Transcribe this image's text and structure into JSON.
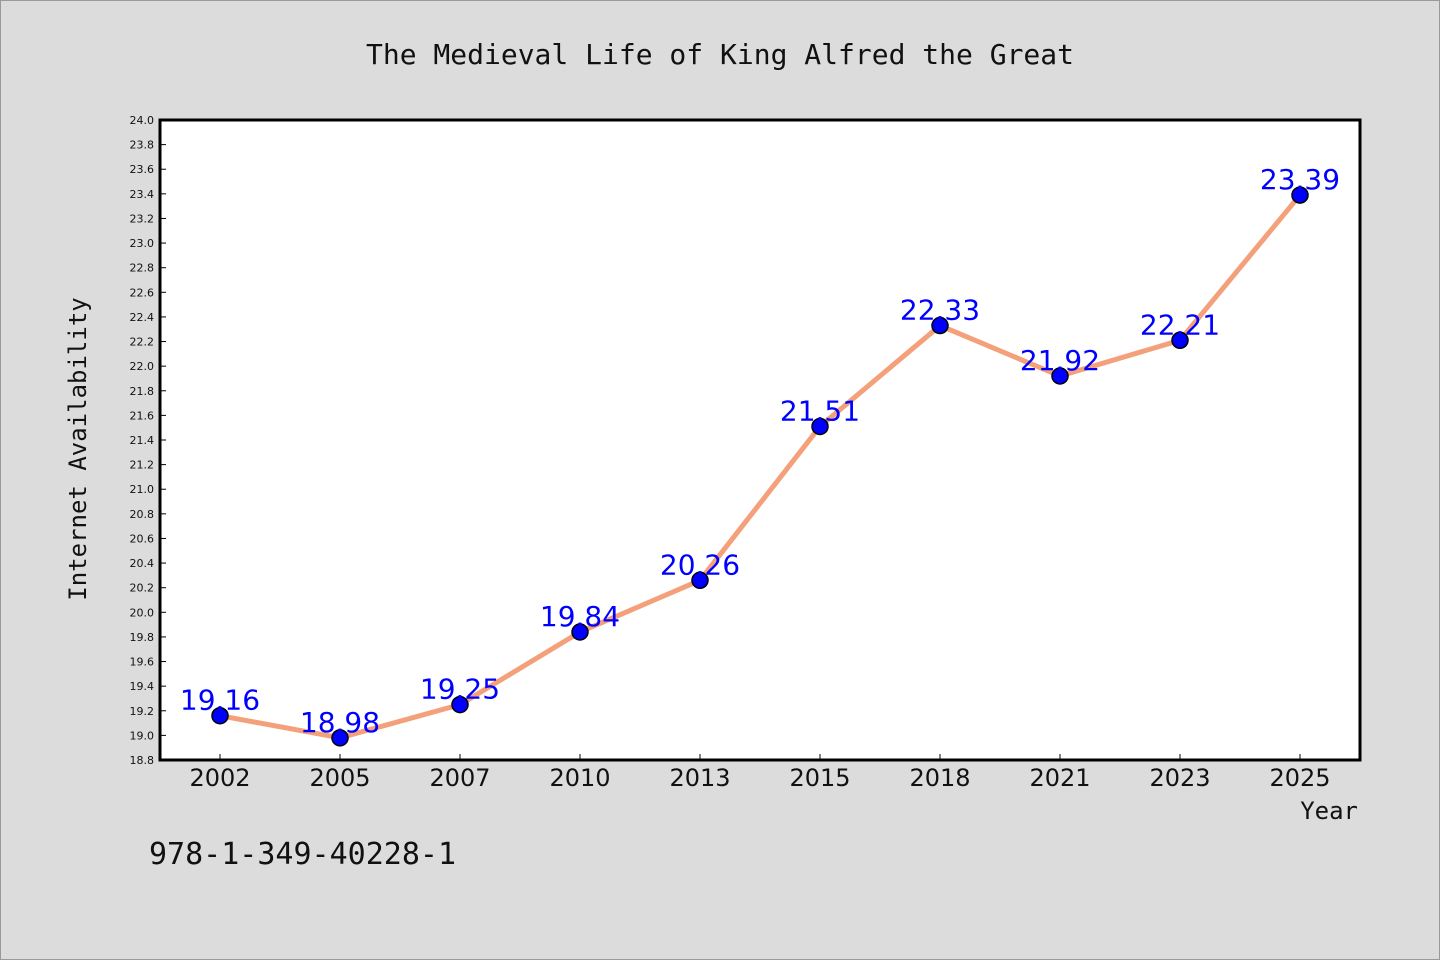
{
  "chart_data": {
    "type": "line",
    "title": "The Medieval Life of King Alfred the Great",
    "xlabel": "Year",
    "ylabel": "Internet Availability",
    "x": [
      "2002",
      "2005",
      "2007",
      "2010",
      "2013",
      "2015",
      "2018",
      "2021",
      "2023",
      "2025"
    ],
    "series": [
      {
        "values": [
          19.16,
          18.98,
          19.25,
          19.84,
          20.26,
          21.51,
          22.33,
          21.92,
          22.21,
          23.39
        ],
        "line_color": "#f4a07a",
        "marker_color": "#0000ff"
      }
    ],
    "data_labels": [
      "19.16",
      "18.98",
      "19.25",
      "19.84",
      "20.26",
      "21.51",
      "22.33",
      "21.92",
      "22.21",
      "23.39"
    ],
    "ylim": [
      18.8,
      24.0
    ],
    "y_ticks": [
      "18.8",
      "19.0",
      "19.2",
      "19.4",
      "19.6",
      "19.8",
      "20.0",
      "20.2",
      "20.4",
      "20.6",
      "20.8",
      "21.0",
      "21.2",
      "21.4",
      "21.6",
      "21.8",
      "22.0",
      "22.2",
      "22.4",
      "22.6",
      "22.8",
      "23.0",
      "23.2",
      "23.4",
      "23.6",
      "23.8",
      "24.0"
    ],
    "grid": false,
    "legend": "none",
    "label_color": "#0000ff"
  },
  "footer_text": "978-1-349-40228-1"
}
